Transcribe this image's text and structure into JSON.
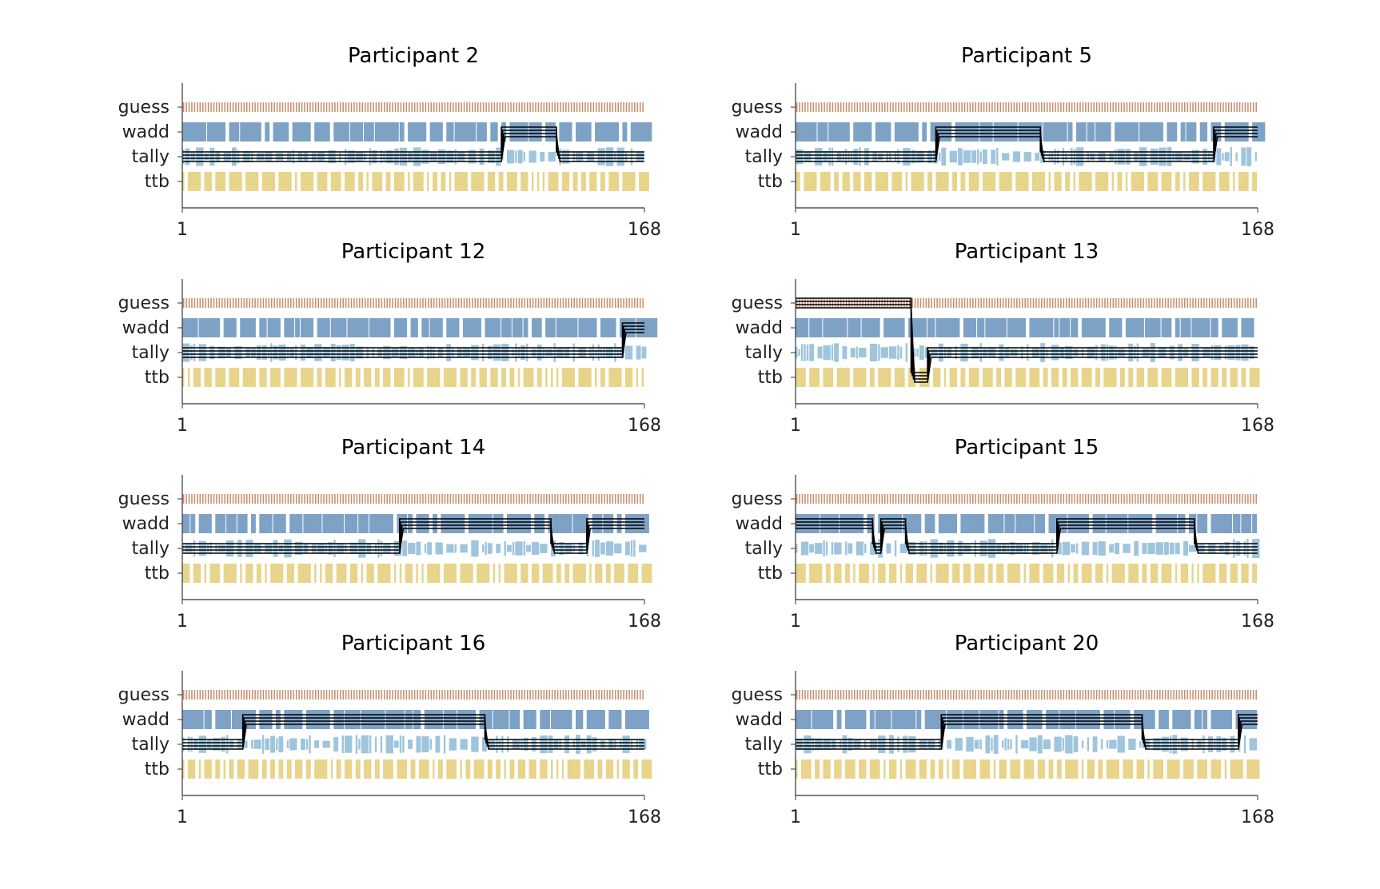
{
  "chart_data": [
    {
      "type": "heatmap",
      "title": "Participant 2",
      "strategies": [
        "guess",
        "wadd",
        "tally",
        "ttb"
      ],
      "x_ticks": [
        1,
        168
      ],
      "model_chains": [
        {
          "segments": [
            [
              1,
              116,
              "tally"
            ],
            [
              117,
              136,
              "wadd"
            ],
            [
              137,
              168,
              "tally"
            ]
          ]
        }
      ]
    },
    {
      "type": "heatmap",
      "title": "Participant 5",
      "strategies": [
        "guess",
        "wadd",
        "tally",
        "ttb"
      ],
      "x_ticks": [
        1,
        168
      ],
      "model_chains": [
        {
          "segments": [
            [
              1,
              51,
              "tally"
            ],
            [
              52,
              89,
              "wadd"
            ],
            [
              90,
              152,
              "tally"
            ],
            [
              153,
              168,
              "wadd"
            ]
          ]
        }
      ]
    },
    {
      "type": "heatmap",
      "title": "Participant 12",
      "strategies": [
        "guess",
        "wadd",
        "tally",
        "ttb"
      ],
      "x_ticks": [
        1,
        168
      ],
      "model_chains": [
        {
          "segments": [
            [
              1,
              160,
              "tally"
            ],
            [
              161,
              168,
              "wadd"
            ]
          ]
        }
      ]
    },
    {
      "type": "heatmap",
      "title": "Participant 13",
      "strategies": [
        "guess",
        "wadd",
        "tally",
        "ttb"
      ],
      "x_ticks": [
        1,
        168
      ],
      "model_chains": [
        {
          "segments": [
            [
              1,
              42,
              "guess"
            ],
            [
              43,
              48,
              "ttb"
            ],
            [
              49,
              168,
              "tally"
            ]
          ]
        }
      ]
    },
    {
      "type": "heatmap",
      "title": "Participant 14",
      "strategies": [
        "guess",
        "wadd",
        "tally",
        "ttb"
      ],
      "x_ticks": [
        1,
        168
      ],
      "model_chains": [
        {
          "segments": [
            [
              1,
              79,
              "tally"
            ],
            [
              80,
              134,
              "wadd"
            ],
            [
              135,
              147,
              "tally"
            ],
            [
              148,
              168,
              "wadd"
            ]
          ]
        }
      ]
    },
    {
      "type": "heatmap",
      "title": "Participant 15",
      "strategies": [
        "guess",
        "wadd",
        "tally",
        "ttb"
      ],
      "x_ticks": [
        1,
        168
      ],
      "model_chains": [
        {
          "segments": [
            [
              1,
              28,
              "wadd"
            ],
            [
              29,
              31,
              "tally"
            ],
            [
              32,
              40,
              "wadd"
            ],
            [
              41,
              95,
              "tally"
            ],
            [
              96,
              145,
              "wadd"
            ],
            [
              146,
              168,
              "tally"
            ]
          ]
        }
      ]
    },
    {
      "type": "heatmap",
      "title": "Participant 16",
      "strategies": [
        "guess",
        "wadd",
        "tally",
        "ttb"
      ],
      "x_ticks": [
        1,
        168
      ],
      "model_chains": [
        {
          "segments": [
            [
              1,
              22,
              "tally"
            ],
            [
              23,
              110,
              "wadd"
            ],
            [
              111,
              126,
              "tally"
            ],
            [
              127,
              168,
              "tally"
            ]
          ]
        }
      ]
    },
    {
      "type": "heatmap",
      "title": "Participant 20",
      "strategies": [
        "guess",
        "wadd",
        "tally",
        "ttb"
      ],
      "x_ticks": [
        1,
        168
      ],
      "model_chains": [
        {
          "segments": [
            [
              1,
              53,
              "tally"
            ],
            [
              54,
              126,
              "wadd"
            ],
            [
              127,
              134,
              "tally"
            ],
            [
              135,
              161,
              "tally"
            ],
            [
              162,
              168,
              "wadd"
            ]
          ]
        }
      ]
    }
  ],
  "colors": {
    "guess": "#c0825f",
    "wadd": "#7ea2c6",
    "tally": "#9ec5dc",
    "ttb": "#e8d48a",
    "chain": "#000000",
    "axis": "#333333"
  }
}
